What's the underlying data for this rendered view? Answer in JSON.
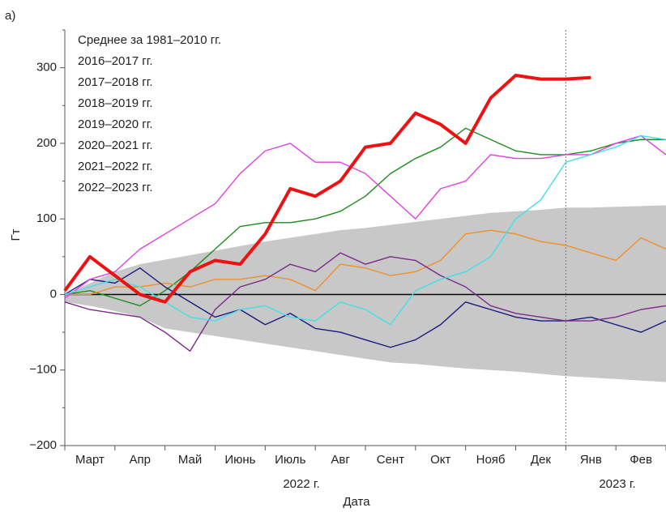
{
  "chart_data": {
    "type": "line",
    "panel_label": "а)",
    "x_label": "Дата",
    "y_label": "Гт",
    "year_labels": [
      "2022 г.",
      "2023 г."
    ],
    "categories": [
      null,
      "Март",
      null,
      "Апр",
      null,
      "Май",
      null,
      "Июнь",
      null,
      "Июль",
      null,
      "Авг",
      null,
      "Сент",
      null,
      "Окт",
      null,
      "Нояб",
      null,
      "Дек",
      null,
      "Янв",
      null,
      "Фев",
      null
    ],
    "ylim": [
      -200,
      350
    ],
    "yticks": [
      {
        "value": -200,
        "label": "−200"
      },
      {
        "value": -100,
        "label": "−100"
      },
      0,
      100,
      200,
      300
    ],
    "band": {
      "color": "#c8c8c8",
      "upper": [
        0,
        15,
        30,
        40,
        46,
        52,
        58,
        64,
        70,
        75,
        80,
        85,
        88,
        92,
        96,
        100,
        104,
        108,
        110,
        112,
        115,
        115,
        116,
        117,
        118
      ],
      "lower": [
        -10,
        -15,
        -22,
        -30,
        -45,
        -50,
        -55,
        -60,
        -65,
        -70,
        -75,
        -80,
        -85,
        -90,
        -92,
        -95,
        -98,
        -100,
        -102,
        -105,
        -108,
        -110,
        -112,
        -114,
        -116
      ]
    },
    "series": [
      {
        "name": "Среднее за 1981–2010 гг.",
        "color": "#000000",
        "values": [
          0,
          0,
          0,
          0,
          0,
          0,
          0,
          0,
          0,
          0,
          0,
          0,
          0,
          0,
          0,
          0,
          0,
          0,
          0,
          0,
          0,
          0,
          0,
          0,
          0
        ]
      },
      {
        "name": "2016–2017 гг.",
        "color": "#1e8c1e",
        "values": [
          0,
          5,
          -5,
          -15,
          5,
          30,
          60,
          90,
          95,
          95,
          100,
          110,
          130,
          160,
          180,
          195,
          220,
          205,
          190,
          185,
          185,
          190,
          200,
          205,
          205
        ]
      },
      {
        "name": "2017–2018 гг.",
        "color": "#f0902a",
        "values": [
          0,
          0,
          10,
          10,
          15,
          10,
          20,
          20,
          25,
          20,
          5,
          40,
          35,
          25,
          30,
          45,
          80,
          85,
          80,
          70,
          65,
          55,
          45,
          75,
          60
        ]
      },
      {
        "name": "2018–2019 гг.",
        "color": "#1a1a80",
        "values": [
          0,
          20,
          15,
          35,
          10,
          -10,
          -30,
          -20,
          -40,
          -25,
          -45,
          -50,
          -60,
          -70,
          -60,
          -40,
          -10,
          -20,
          -30,
          -35,
          -35,
          -30,
          -40,
          -50,
          -35
        ]
      },
      {
        "name": "2019–2020 гг.",
        "color": "#7a2a8a",
        "values": [
          -10,
          -20,
          -25,
          -30,
          -50,
          -75,
          -20,
          10,
          20,
          40,
          30,
          55,
          40,
          50,
          45,
          25,
          10,
          -15,
          -25,
          -30,
          -35,
          -35,
          -30,
          -20,
          -15
        ]
      },
      {
        "name": "2020–2021 гг.",
        "color": "#e040e0",
        "values": [
          -5,
          20,
          30,
          60,
          80,
          100,
          120,
          160,
          190,
          200,
          175,
          175,
          160,
          130,
          100,
          140,
          150,
          185,
          180,
          180,
          185,
          185,
          200,
          210,
          185
        ]
      },
      {
        "name": "2021–2022 гг.",
        "color": "#40e0e8",
        "values": [
          0,
          10,
          20,
          10,
          -10,
          -30,
          -35,
          -20,
          -15,
          -30,
          -35,
          -10,
          -20,
          -40,
          5,
          20,
          30,
          50,
          100,
          125,
          175,
          185,
          195,
          210,
          205
        ]
      },
      {
        "name": "2022–2023 гг.",
        "color": "#ee1111",
        "values": [
          5,
          50,
          25,
          0,
          -10,
          30,
          45,
          40,
          80,
          140,
          130,
          150,
          195,
          200,
          240,
          225,
          200,
          260,
          290,
          285,
          285,
          287,
          null,
          null,
          null
        ]
      }
    ]
  }
}
